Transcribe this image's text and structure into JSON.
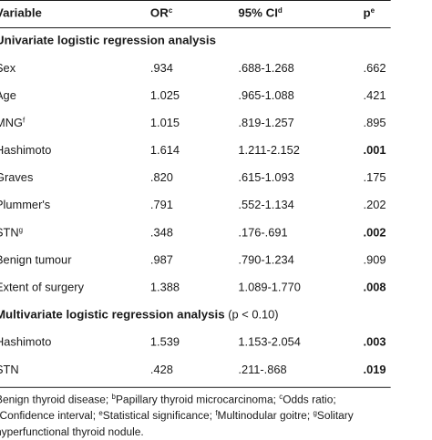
{
  "header": {
    "variable": "Variable",
    "or": "OR",
    "or_sup": "c",
    "ci": "95% CI",
    "ci_sup": "d",
    "p": "p",
    "p_sup": "e"
  },
  "sections": [
    {
      "title": "Univariate logistic regression analysis",
      "note": "",
      "rows": [
        {
          "variable": "Sex",
          "sup": "",
          "or": ".934",
          "ci": ".688-1.268",
          "p": ".662",
          "bold": false
        },
        {
          "variable": "Age",
          "sup": "",
          "or": "1.025",
          "ci": ".965-1.088",
          "p": ".421",
          "bold": false
        },
        {
          "variable": "MNG",
          "sup": "f",
          "or": "1.015",
          "ci": ".819-1.257",
          "p": ".895",
          "bold": false
        },
        {
          "variable": "Hashimoto",
          "sup": "",
          "or": "1.614",
          "ci": "1.211-2.152",
          "p": ".001",
          "bold": true
        },
        {
          "variable": "Graves",
          "sup": "",
          "or": ".820",
          "ci": ".615-1.093",
          "p": ".175",
          "bold": false
        },
        {
          "variable": "Plummer's",
          "sup": "",
          "or": ".791",
          "ci": ".552-1.134",
          "p": ".202",
          "bold": false
        },
        {
          "variable": "STN",
          "sup": "g",
          "or": ".348",
          "ci": ".176-.691",
          "p": ".002",
          "bold": true
        },
        {
          "variable": "Benign tumour",
          "sup": "",
          "or": ".987",
          "ci": ".790-1.234",
          "p": ".909",
          "bold": false
        },
        {
          "variable": "Extent of surgery",
          "sup": "",
          "or": "1.388",
          "ci": "1.089-1.770",
          "p": ".008",
          "bold": true
        }
      ]
    },
    {
      "title": "Multivariate logistic regression analysis",
      "note": "(p < 0.10)",
      "rows": [
        {
          "variable": "Hashimoto",
          "sup": "",
          "or": "1.539",
          "ci": "1.153-2.054",
          "p": ".003",
          "bold": true
        },
        {
          "variable": "STN",
          "sup": "",
          "or": ".428",
          "ci": ".211-.868",
          "p": ".019",
          "bold": true
        }
      ]
    }
  ],
  "footnote": {
    "a_text": "Benign thyroid disease; ",
    "b_sup": "b",
    "b_text": "Papillary thyroid microcarcinoma; ",
    "c_sup": "c",
    "c_text": "Odds ratio;",
    "d_sup": "d",
    "d_text": "Confidence interval; ",
    "e_sup": "e",
    "e_text": "Statistical significance; ",
    "f_sup": "f",
    "f_text": "Multinodular goitre; ",
    "g_sup": "g",
    "g_text": "Solitary",
    "line3": "hyperfunctional thyroid nodule."
  }
}
